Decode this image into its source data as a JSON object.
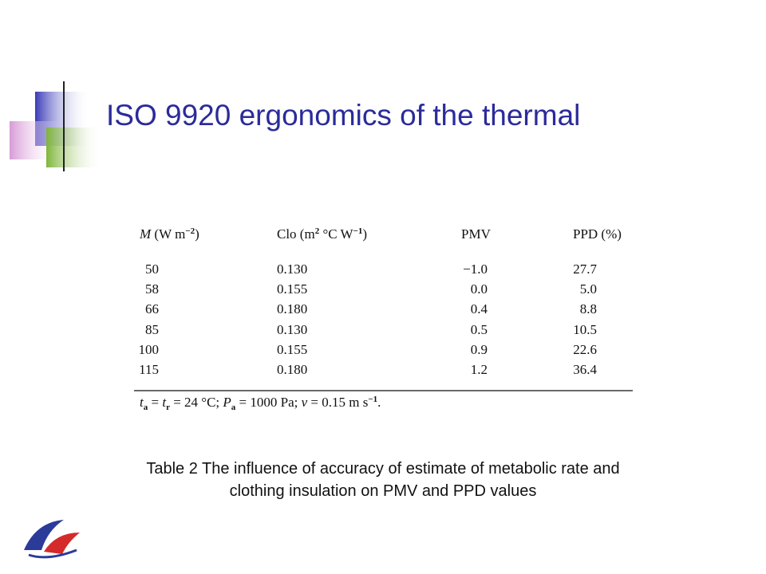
{
  "slide": {
    "title": "ISO 9920 ergonomics of the thermal",
    "table": {
      "header": [
        [
          {
            "text": "M",
            "style": "italic"
          },
          {
            "text": " (W m"
          },
          {
            "text": "−2",
            "style": "sup"
          },
          {
            "text": ")"
          }
        ],
        [
          {
            "text": "Clo (m"
          },
          {
            "text": "2",
            "style": "sup"
          },
          {
            "text": " °C W"
          },
          {
            "text": "−1",
            "style": "sup"
          },
          {
            "text": ")"
          }
        ],
        [
          {
            "text": "PMV"
          }
        ],
        [
          {
            "text": "PPD (%)"
          }
        ]
      ],
      "rows": [
        [
          "50",
          "0.130",
          "−1.0",
          "27.7"
        ],
        [
          "58",
          "0.155",
          "0.0",
          "5.0"
        ],
        [
          "66",
          "0.180",
          "0.4",
          "8.8"
        ],
        [
          "85",
          "0.130",
          "0.5",
          "10.5"
        ],
        [
          "100",
          "0.155",
          "0.9",
          "22.6"
        ],
        [
          "115",
          "0.180",
          "1.2",
          "36.4"
        ]
      ],
      "footnote": [
        {
          "text": "t",
          "style": "italic"
        },
        {
          "text": "a",
          "style": "sub"
        },
        {
          "text": " = "
        },
        {
          "text": "t",
          "style": "italic"
        },
        {
          "text": "r",
          "style": "sub"
        },
        {
          "text": " = 24 °C; "
        },
        {
          "text": "P",
          "style": "italic"
        },
        {
          "text": "a",
          "style": "sub"
        },
        {
          "text": " = 1000 Pa; "
        },
        {
          "text": "v",
          "style": "italic"
        },
        {
          "text": " = 0.15 m s"
        },
        {
          "text": "−1",
          "style": "sup"
        },
        {
          "text": "."
        }
      ]
    },
    "caption": [
      "Table 2 The influence of accuracy of estimate of metabolic rate and",
      "clothing insulation on PMV and PPD values"
    ]
  }
}
